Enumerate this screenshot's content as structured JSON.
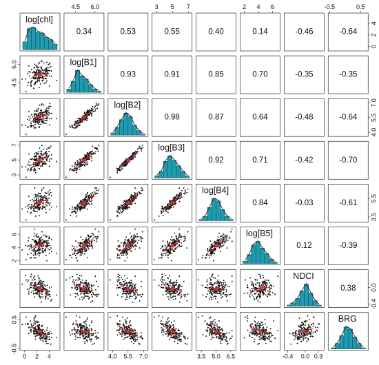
{
  "chart_data": {
    "type": "scatter",
    "variables": [
      "log[chl]",
      "log[B1]",
      "log[B2]",
      "log[B3]",
      "log[B4]",
      "log[B5]",
      "NDCI",
      "BRG"
    ],
    "correlations": [
      [
        null,
        0.34,
        0.53,
        0.55,
        0.4,
        0.14,
        -0.46,
        -0.64
      ],
      [
        null,
        null,
        0.93,
        0.91,
        0.85,
        0.7,
        -0.35,
        -0.35
      ],
      [
        null,
        null,
        null,
        0.98,
        0.87,
        0.64,
        -0.48,
        -0.64
      ],
      [
        null,
        null,
        null,
        null,
        0.92,
        0.71,
        -0.42,
        -0.7
      ],
      [
        null,
        null,
        null,
        null,
        null,
        0.84,
        -0.03,
        -0.61
      ],
      [
        null,
        null,
        null,
        null,
        null,
        null,
        0.12,
        -0.39
      ],
      [
        null,
        null,
        null,
        null,
        null,
        null,
        null,
        0.38
      ],
      [
        null,
        null,
        null,
        null,
        null,
        null,
        null,
        null
      ]
    ],
    "correlation_labels": [
      [
        null,
        "0.34",
        "0.53",
        "0.55",
        "0.40",
        "0.14",
        "-0.46",
        "-0.64"
      ],
      [
        null,
        null,
        "0.93",
        "0.91",
        "0.85",
        "0.70",
        "-0.35",
        "-0.35"
      ],
      [
        null,
        null,
        null,
        "0.98",
        "0.87",
        "0.64",
        "-0.48",
        "-0.64"
      ],
      [
        null,
        null,
        null,
        null,
        "0.92",
        "0.71",
        "-0.42",
        "-0.70"
      ],
      [
        null,
        null,
        null,
        null,
        null,
        "0.84",
        "-0.03",
        "-0.61"
      ],
      [
        null,
        null,
        null,
        null,
        null,
        null,
        "0.12",
        "-0.39"
      ],
      [
        null,
        null,
        null,
        null,
        null,
        null,
        null,
        "0.38"
      ],
      [
        null,
        null,
        null,
        null,
        null,
        null,
        null,
        null
      ]
    ],
    "ranges": [
      [
        -0.5,
        5.5
      ],
      [
        3.7,
        6.6
      ],
      [
        3.7,
        7.3
      ],
      [
        2.6,
        7.3
      ],
      [
        3.1,
        6.9
      ],
      [
        1.6,
        6.9
      ],
      [
        -0.45,
        0.4
      ],
      [
        -0.5,
        0.7
      ]
    ],
    "ticks": [
      {
        "values": [
          0,
          2,
          4
        ],
        "labels": [
          "0",
          "2",
          "4"
        ],
        "side": "bottom"
      },
      {
        "values": [
          4.5,
          6.0
        ],
        "labels": [
          "4.5",
          "6.0"
        ],
        "side": "top"
      },
      {
        "values": [
          4.0,
          5.5,
          7.0
        ],
        "labels": [
          "4.0",
          "5.5",
          "7.0"
        ],
        "side": "bottom"
      },
      {
        "values": [
          3,
          5,
          7
        ],
        "labels": [
          "3",
          "5",
          "7"
        ],
        "side": "top"
      },
      {
        "values": [
          3.5,
          5.0,
          6.5
        ],
        "labels": [
          "3.5",
          "5.0",
          "6.5"
        ],
        "side": "bottom"
      },
      {
        "values": [
          2,
          4,
          6
        ],
        "labels": [
          "2",
          "4",
          "6"
        ],
        "side": "top"
      },
      {
        "values": [
          -0.4,
          0.0,
          0.3
        ],
        "labels": [
          "-0.4",
          "0.0",
          "0.3"
        ],
        "side": "bottom"
      },
      {
        "values": [
          -0.5,
          0.5
        ],
        "labels": [
          "-0.5",
          "0.5"
        ],
        "side": "top"
      }
    ],
    "yticks": [
      {
        "values": [
          0,
          2,
          4
        ],
        "labels": [
          "0",
          "2",
          "4"
        ],
        "side": "right"
      },
      {
        "values": [
          4.5,
          6.0
        ],
        "labels": [
          "4.5",
          "6.0"
        ],
        "side": "left"
      },
      {
        "values": [
          4.0,
          5.5,
          7.0
        ],
        "labels": [
          "4.0",
          "5.5",
          "7.0"
        ],
        "side": "right"
      },
      {
        "values": [
          3,
          5,
          7
        ],
        "labels": [
          "3",
          "5",
          "7"
        ],
        "side": "left"
      },
      {
        "values": [
          3.5,
          5.5
        ],
        "labels": [
          "3.5",
          "5.5"
        ],
        "side": "right"
      },
      {
        "values": [
          2,
          4,
          6
        ],
        "labels": [
          "2",
          "4",
          "6"
        ],
        "side": "left"
      },
      {
        "values": [
          -0.4,
          0.0
        ],
        "labels": [
          "-0.4",
          "0.0"
        ],
        "side": "right"
      },
      {
        "values": [
          -0.5,
          0.5
        ],
        "labels": [
          "-0.5",
          "0.5"
        ],
        "side": "left"
      }
    ],
    "histograms": [
      [
        0.35,
        0.95,
        1.0,
        0.8,
        0.75,
        0.55,
        0.45,
        0.25
      ],
      [
        0.15,
        0.5,
        1.0,
        0.75,
        0.6,
        0.35,
        0.15,
        0.05
      ],
      [
        0.1,
        0.35,
        0.7,
        1.0,
        0.85,
        0.45,
        0.2,
        0.05
      ],
      [
        0.1,
        0.3,
        0.75,
        1.0,
        0.8,
        0.55,
        0.3,
        0.1
      ],
      [
        0.05,
        0.2,
        0.6,
        1.0,
        0.9,
        0.5,
        0.2,
        0.05
      ],
      [
        0.1,
        0.4,
        0.85,
        1.0,
        0.7,
        0.45,
        0.2,
        0.05
      ],
      [
        0.05,
        0.15,
        0.35,
        0.7,
        1.0,
        0.6,
        0.25,
        0.05
      ],
      [
        0.05,
        0.25,
        0.6,
        1.0,
        0.9,
        0.55,
        0.25,
        0.05
      ]
    ],
    "grid": false,
    "colors": {
      "histogram_fill": "#1f9bb0",
      "histogram_stroke": "#1a4d57",
      "points": "#111111",
      "lowess": "#e03030",
      "panel_border": "#444444"
    }
  }
}
